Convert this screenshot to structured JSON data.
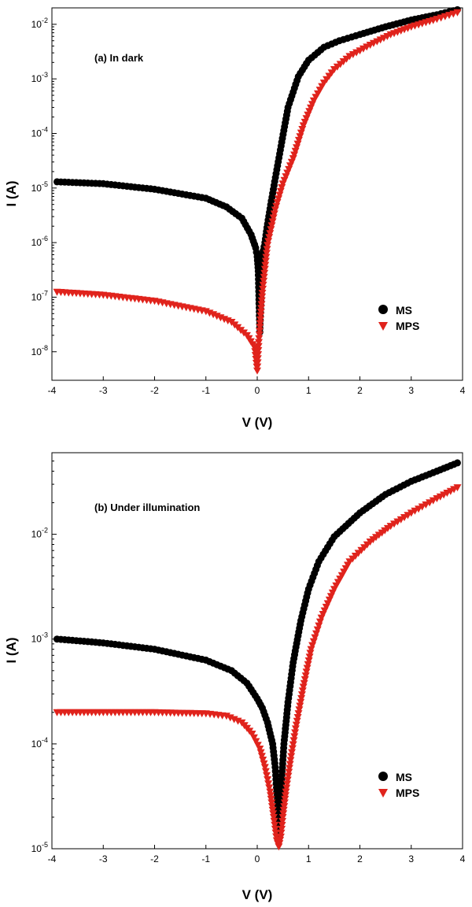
{
  "chart_data": [
    {
      "type": "scatter",
      "annotation": "(a) In dark",
      "xlabel": "V (V)",
      "ylabel": "I (A)",
      "xlim": [
        -4,
        4
      ],
      "ylim": [
        3e-09,
        0.02
      ],
      "yscale": "log",
      "xticks": [
        "-4",
        "-3",
        "-2",
        "-1",
        "0",
        "1",
        "2",
        "3",
        "4"
      ],
      "yticks": [
        {
          "base": "10",
          "exp": "-8"
        },
        {
          "base": "10",
          "exp": "-7"
        },
        {
          "base": "10",
          "exp": "-6"
        },
        {
          "base": "10",
          "exp": "-5"
        },
        {
          "base": "10",
          "exp": "-4"
        },
        {
          "base": "10",
          "exp": "-3"
        },
        {
          "base": "10",
          "exp": "-2"
        }
      ],
      "legend_position": "bottom-right",
      "series": [
        {
          "name": "MS",
          "marker": "circle",
          "color": "#000000",
          "points": [
            [
              -3.9,
              1.3e-05
            ],
            [
              -3.0,
              1.2e-05
            ],
            [
              -2.0,
              9.5e-06
            ],
            [
              -1.0,
              6.5e-06
            ],
            [
              -0.6,
              4.5e-06
            ],
            [
              -0.3,
              2.8e-06
            ],
            [
              -0.12,
              1.4e-06
            ],
            [
              -0.03,
              8e-07
            ],
            [
              0.0,
              5.5e-07
            ],
            [
              0.02,
              3e-07
            ],
            [
              0.05,
              2.3e-08
            ],
            [
              0.1,
              6e-07
            ],
            [
              0.15,
              1e-06
            ],
            [
              0.2,
              2.2e-06
            ],
            [
              0.3,
              8e-06
            ],
            [
              0.45,
              5e-05
            ],
            [
              0.6,
              0.0003
            ],
            [
              0.8,
              0.0011
            ],
            [
              1.0,
              0.0022
            ],
            [
              1.3,
              0.0038
            ],
            [
              1.6,
              0.005
            ],
            [
              2.0,
              0.0065
            ],
            [
              2.5,
              0.009
            ],
            [
              3.0,
              0.012
            ],
            [
              3.5,
              0.015
            ],
            [
              3.9,
              0.0185
            ]
          ]
        },
        {
          "name": "MPS",
          "marker": "triangle-down",
          "color": "#e0231c",
          "points": [
            [
              -3.9,
              1.25e-07
            ],
            [
              -3.0,
              1.1e-07
            ],
            [
              -2.0,
              8.5e-08
            ],
            [
              -1.0,
              5.5e-08
            ],
            [
              -0.5,
              3.5e-08
            ],
            [
              -0.2,
              2e-08
            ],
            [
              -0.05,
              1.2e-08
            ],
            [
              0.0,
              4.5e-09
            ],
            [
              0.03,
              1.5e-08
            ],
            [
              0.1,
              1.2e-07
            ],
            [
              0.2,
              9e-07
            ],
            [
              0.35,
              4e-06
            ],
            [
              0.5,
              1.2e-05
            ],
            [
              0.7,
              3.5e-05
            ],
            [
              0.9,
              0.00014
            ],
            [
              1.1,
              0.0004
            ],
            [
              1.3,
              0.00085
            ],
            [
              1.5,
              0.0015
            ],
            [
              1.8,
              0.0026
            ],
            [
              2.2,
              0.0042
            ],
            [
              2.6,
              0.0065
            ],
            [
              3.0,
              0.009
            ],
            [
              3.5,
              0.0125
            ],
            [
              3.9,
              0.0165
            ]
          ]
        }
      ]
    },
    {
      "type": "scatter",
      "annotation": "(b) Under illumination",
      "xlabel": "V (V)",
      "ylabel": "I (A)",
      "xlim": [
        -4,
        4
      ],
      "ylim": [
        1e-05,
        0.06
      ],
      "yscale": "log",
      "xticks": [
        "-4",
        "-3",
        "-2",
        "-1",
        "0",
        "1",
        "2",
        "3",
        "4"
      ],
      "yticks": [
        {
          "base": "10",
          "exp": "-5"
        },
        {
          "base": "10",
          "exp": "-4"
        },
        {
          "base": "10",
          "exp": "-3"
        },
        {
          "base": "10",
          "exp": "-2"
        }
      ],
      "legend_position": "bottom-right",
      "series": [
        {
          "name": "MS",
          "marker": "circle",
          "color": "#000000",
          "points": [
            [
              -3.9,
              0.001
            ],
            [
              -3.0,
              0.00092
            ],
            [
              -2.0,
              0.0008
            ],
            [
              -1.0,
              0.00063
            ],
            [
              -0.5,
              0.0005
            ],
            [
              -0.2,
              0.00038
            ],
            [
              0.0,
              0.00027
            ],
            [
              0.1,
              0.00022
            ],
            [
              0.2,
              0.00016
            ],
            [
              0.3,
              0.0001
            ],
            [
              0.35,
              6e-05
            ],
            [
              0.38,
              3.5e-05
            ],
            [
              0.4,
              2.2e-05
            ],
            [
              0.42,
              1.3e-05
            ],
            [
              0.45,
              2.5e-05
            ],
            [
              0.48,
              5e-05
            ],
            [
              0.52,
              0.0001
            ],
            [
              0.6,
              0.00025
            ],
            [
              0.7,
              0.0006
            ],
            [
              0.85,
              0.0015
            ],
            [
              1.0,
              0.003
            ],
            [
              1.2,
              0.0055
            ],
            [
              1.5,
              0.0095
            ],
            [
              2.0,
              0.016
            ],
            [
              2.5,
              0.024
            ],
            [
              3.0,
              0.032
            ],
            [
              3.5,
              0.04
            ],
            [
              3.9,
              0.048
            ]
          ]
        },
        {
          "name": "MPS",
          "marker": "triangle-down",
          "color": "#e0231c",
          "points": [
            [
              -3.9,
              0.0002
            ],
            [
              -3.0,
              0.0002
            ],
            [
              -2.0,
              0.0002
            ],
            [
              -1.0,
              0.000195
            ],
            [
              -0.6,
              0.000185
            ],
            [
              -0.3,
              0.00016
            ],
            [
              -0.1,
              0.000125
            ],
            [
              0.05,
              9e-05
            ],
            [
              0.15,
              6e-05
            ],
            [
              0.25,
              3.5e-05
            ],
            [
              0.32,
              2e-05
            ],
            [
              0.38,
              1.2e-05
            ],
            [
              0.42,
              1.05e-05
            ],
            [
              0.46,
              1.3e-05
            ],
            [
              0.5,
              2e-05
            ],
            [
              0.56,
              3.5e-05
            ],
            [
              0.65,
              7e-05
            ],
            [
              0.75,
              0.00014
            ],
            [
              0.9,
              0.00035
            ],
            [
              1.05,
              0.0008
            ],
            [
              1.25,
              0.0016
            ],
            [
              1.5,
              0.003
            ],
            [
              1.8,
              0.0055
            ],
            [
              2.2,
              0.0085
            ],
            [
              2.6,
              0.012
            ],
            [
              3.0,
              0.016
            ],
            [
              3.5,
              0.022
            ],
            [
              3.9,
              0.028
            ]
          ]
        }
      ]
    }
  ]
}
